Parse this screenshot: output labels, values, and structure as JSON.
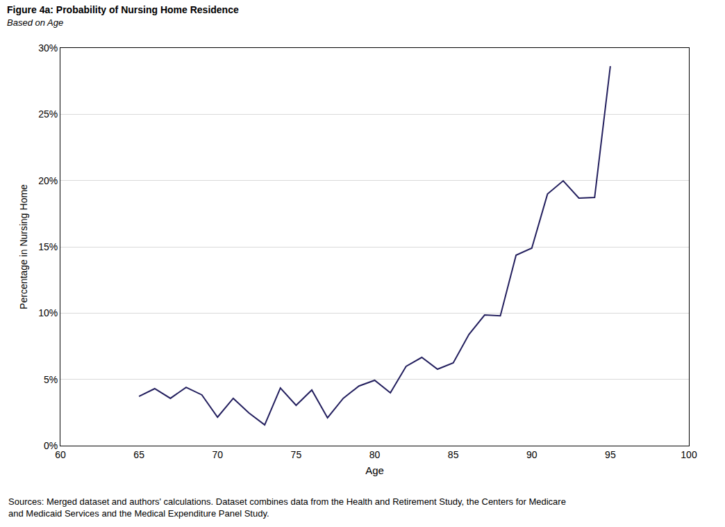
{
  "chart_data": {
    "type": "line",
    "title": "Figure 4a: Probability of Nursing Home Residence",
    "subtitle": "Based on Age",
    "x_label": "Age",
    "y_label": "Percentage in Nursing Home",
    "note": "Sources: Merged dataset and authors' calculations. Dataset combines data from the Health and Retirement Study, the Centers for Medicare and Medicaid Services and the Medical Expenditure Panel Study.",
    "x": [
      65,
      66,
      67,
      68,
      69,
      70,
      71,
      72,
      73,
      74,
      75,
      76,
      77,
      78,
      79,
      80,
      81,
      82,
      83,
      84,
      85,
      86,
      87,
      88,
      89,
      90,
      91,
      92,
      93,
      94,
      95
    ],
    "values": [
      3.72,
      4.3,
      3.57,
      4.4,
      3.83,
      2.15,
      3.57,
      2.46,
      1.57,
      4.35,
      3.04,
      4.2,
      2.1,
      3.57,
      4.5,
      4.93,
      3.99,
      5.98,
      6.66,
      5.77,
      6.24,
      8.39,
      9.86,
      9.8,
      14.37,
      14.9,
      18.98,
      19.98,
      18.67,
      18.72,
      28.63
    ],
    "color": "#231f5e",
    "xlim": [
      60,
      100
    ],
    "xticks": [
      60,
      65,
      70,
      75,
      80,
      85,
      90,
      95,
      100
    ],
    "ylim": [
      0,
      30
    ],
    "yticks": [
      {
        "value": 0,
        "label": "0%"
      },
      {
        "value": 5,
        "label": "5%"
      },
      {
        "value": 10,
        "label": "10%"
      },
      {
        "value": 15,
        "label": "15%"
      },
      {
        "value": 20,
        "label": "20%"
      },
      {
        "value": 25,
        "label": "25%"
      },
      {
        "value": 30,
        "label": "30%"
      }
    ],
    "grid": true
  }
}
